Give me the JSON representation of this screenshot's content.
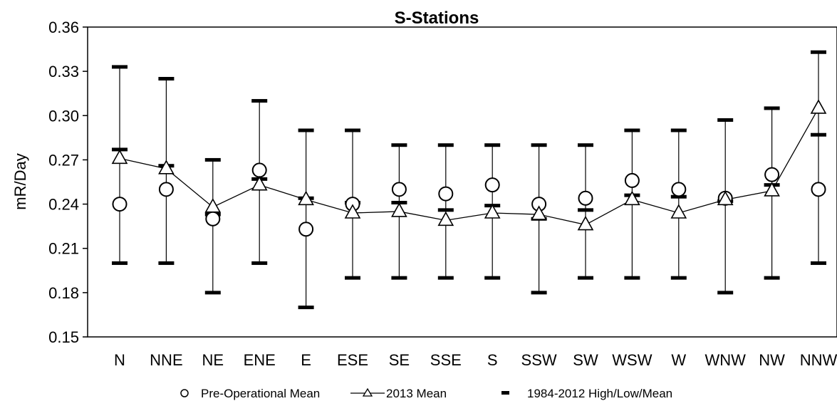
{
  "chart_data": {
    "type": "line",
    "title": "S-Stations",
    "xlabel": "",
    "ylabel": "mR/Day",
    "ylim": [
      0.15,
      0.36
    ],
    "yticks": [
      "0.15",
      "0.18",
      "0.21",
      "0.24",
      "0.27",
      "0.30",
      "0.33",
      "0.36"
    ],
    "categories": [
      "N",
      "NNE",
      "NE",
      "ENE",
      "E",
      "ESE",
      "SE",
      "SSE",
      "S",
      "SSW",
      "SW",
      "WSW",
      "W",
      "WNW",
      "NW",
      "NNW"
    ],
    "series": [
      {
        "name": "Pre-Operational Mean",
        "marker": "circle",
        "values": [
          0.24,
          0.25,
          0.23,
          0.263,
          0.223,
          0.24,
          0.25,
          0.247,
          0.253,
          0.24,
          0.244,
          0.256,
          0.25,
          0.244,
          0.26,
          0.25
        ]
      },
      {
        "name": "2013 Mean",
        "marker": "triangle",
        "values": [
          0.271,
          0.264,
          0.238,
          0.253,
          0.243,
          0.234,
          0.235,
          0.229,
          0.234,
          0.233,
          0.226,
          0.243,
          0.234,
          0.243,
          0.249,
          0.305
        ]
      },
      {
        "name": "1984-2012 High/Low/Mean",
        "marker": "dash",
        "high": [
          0.333,
          0.325,
          0.27,
          0.31,
          0.29,
          0.29,
          0.28,
          0.28,
          0.28,
          0.28,
          0.28,
          0.29,
          0.29,
          0.297,
          0.305,
          0.343
        ],
        "low": [
          0.2,
          0.2,
          0.18,
          0.2,
          0.17,
          0.19,
          0.19,
          0.19,
          0.19,
          0.18,
          0.19,
          0.19,
          0.19,
          0.18,
          0.19,
          0.2
        ],
        "mean": [
          0.277,
          0.266,
          0.233,
          0.257,
          0.244,
          0.241,
          0.241,
          0.236,
          0.239,
          0.23,
          0.236,
          0.246,
          0.245,
          0.242,
          0.253,
          0.287
        ]
      }
    ],
    "legend_position": "bottom"
  }
}
